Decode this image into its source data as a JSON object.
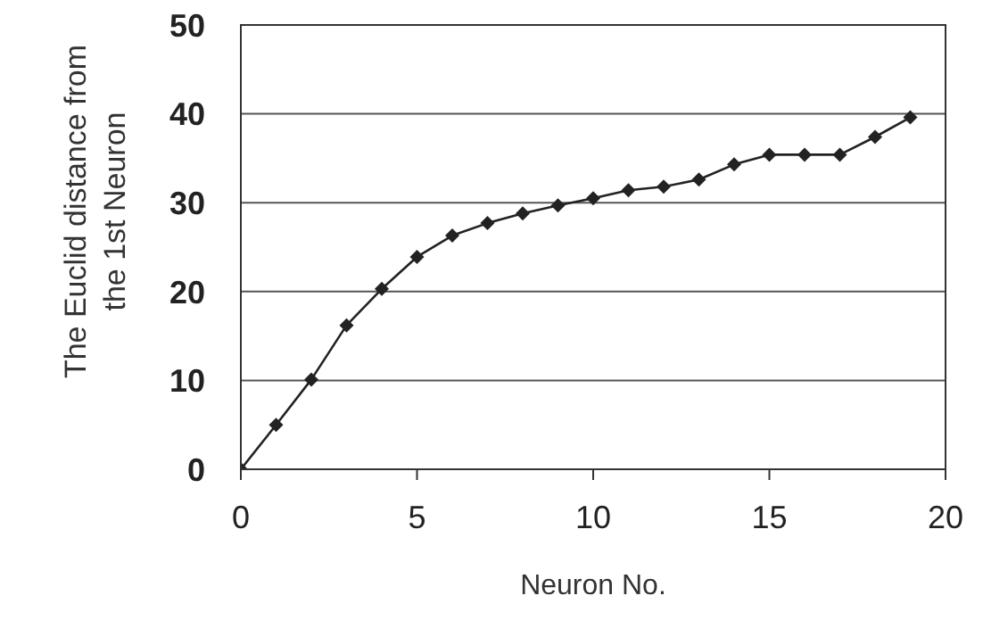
{
  "chart_data": {
    "type": "line",
    "xlabel": "Neuron No.",
    "ylabel": "The Euclid distance from the 1st Neuron",
    "x": [
      0,
      1,
      2,
      3,
      4,
      5,
      6,
      7,
      8,
      9,
      10,
      11,
      12,
      13,
      14,
      15,
      16,
      17,
      18,
      19
    ],
    "series": [
      {
        "color": "#222222",
        "values": [
          0,
          5.0,
          10.1,
          16.2,
          20.3,
          23.9,
          26.3,
          27.7,
          28.8,
          29.7,
          30.5,
          31.4,
          31.8,
          32.6,
          34.3,
          35.4,
          35.4,
          35.4,
          37.4,
          39.6
        ]
      }
    ],
    "xlim": [
      0,
      20
    ],
    "xticks": [
      0,
      5,
      10,
      15,
      20
    ],
    "ylim": [
      0,
      50
    ],
    "yticks": [
      0,
      10,
      20,
      30,
      40,
      50
    ],
    "grid": "y",
    "marker": "diamond",
    "line_style": "solid"
  }
}
